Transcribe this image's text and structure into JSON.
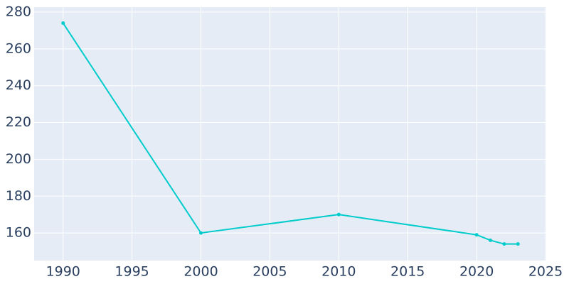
{
  "chart_data": {
    "type": "line",
    "x": [
      1990,
      2000,
      2010,
      2020,
      2021,
      2022,
      2023
    ],
    "values": [
      274,
      160,
      170,
      159,
      156,
      154,
      154
    ],
    "color": "#00cccc",
    "xlim": [
      1987.9,
      2025.05
    ],
    "xticks": [
      1990,
      1995,
      2000,
      2005,
      2010,
      2015,
      2020,
      2025
    ],
    "ylim": [
      145,
      282.7
    ],
    "yticks": [
      160,
      180,
      200,
      220,
      240,
      260,
      280
    ],
    "grid": true,
    "markers": true
  }
}
